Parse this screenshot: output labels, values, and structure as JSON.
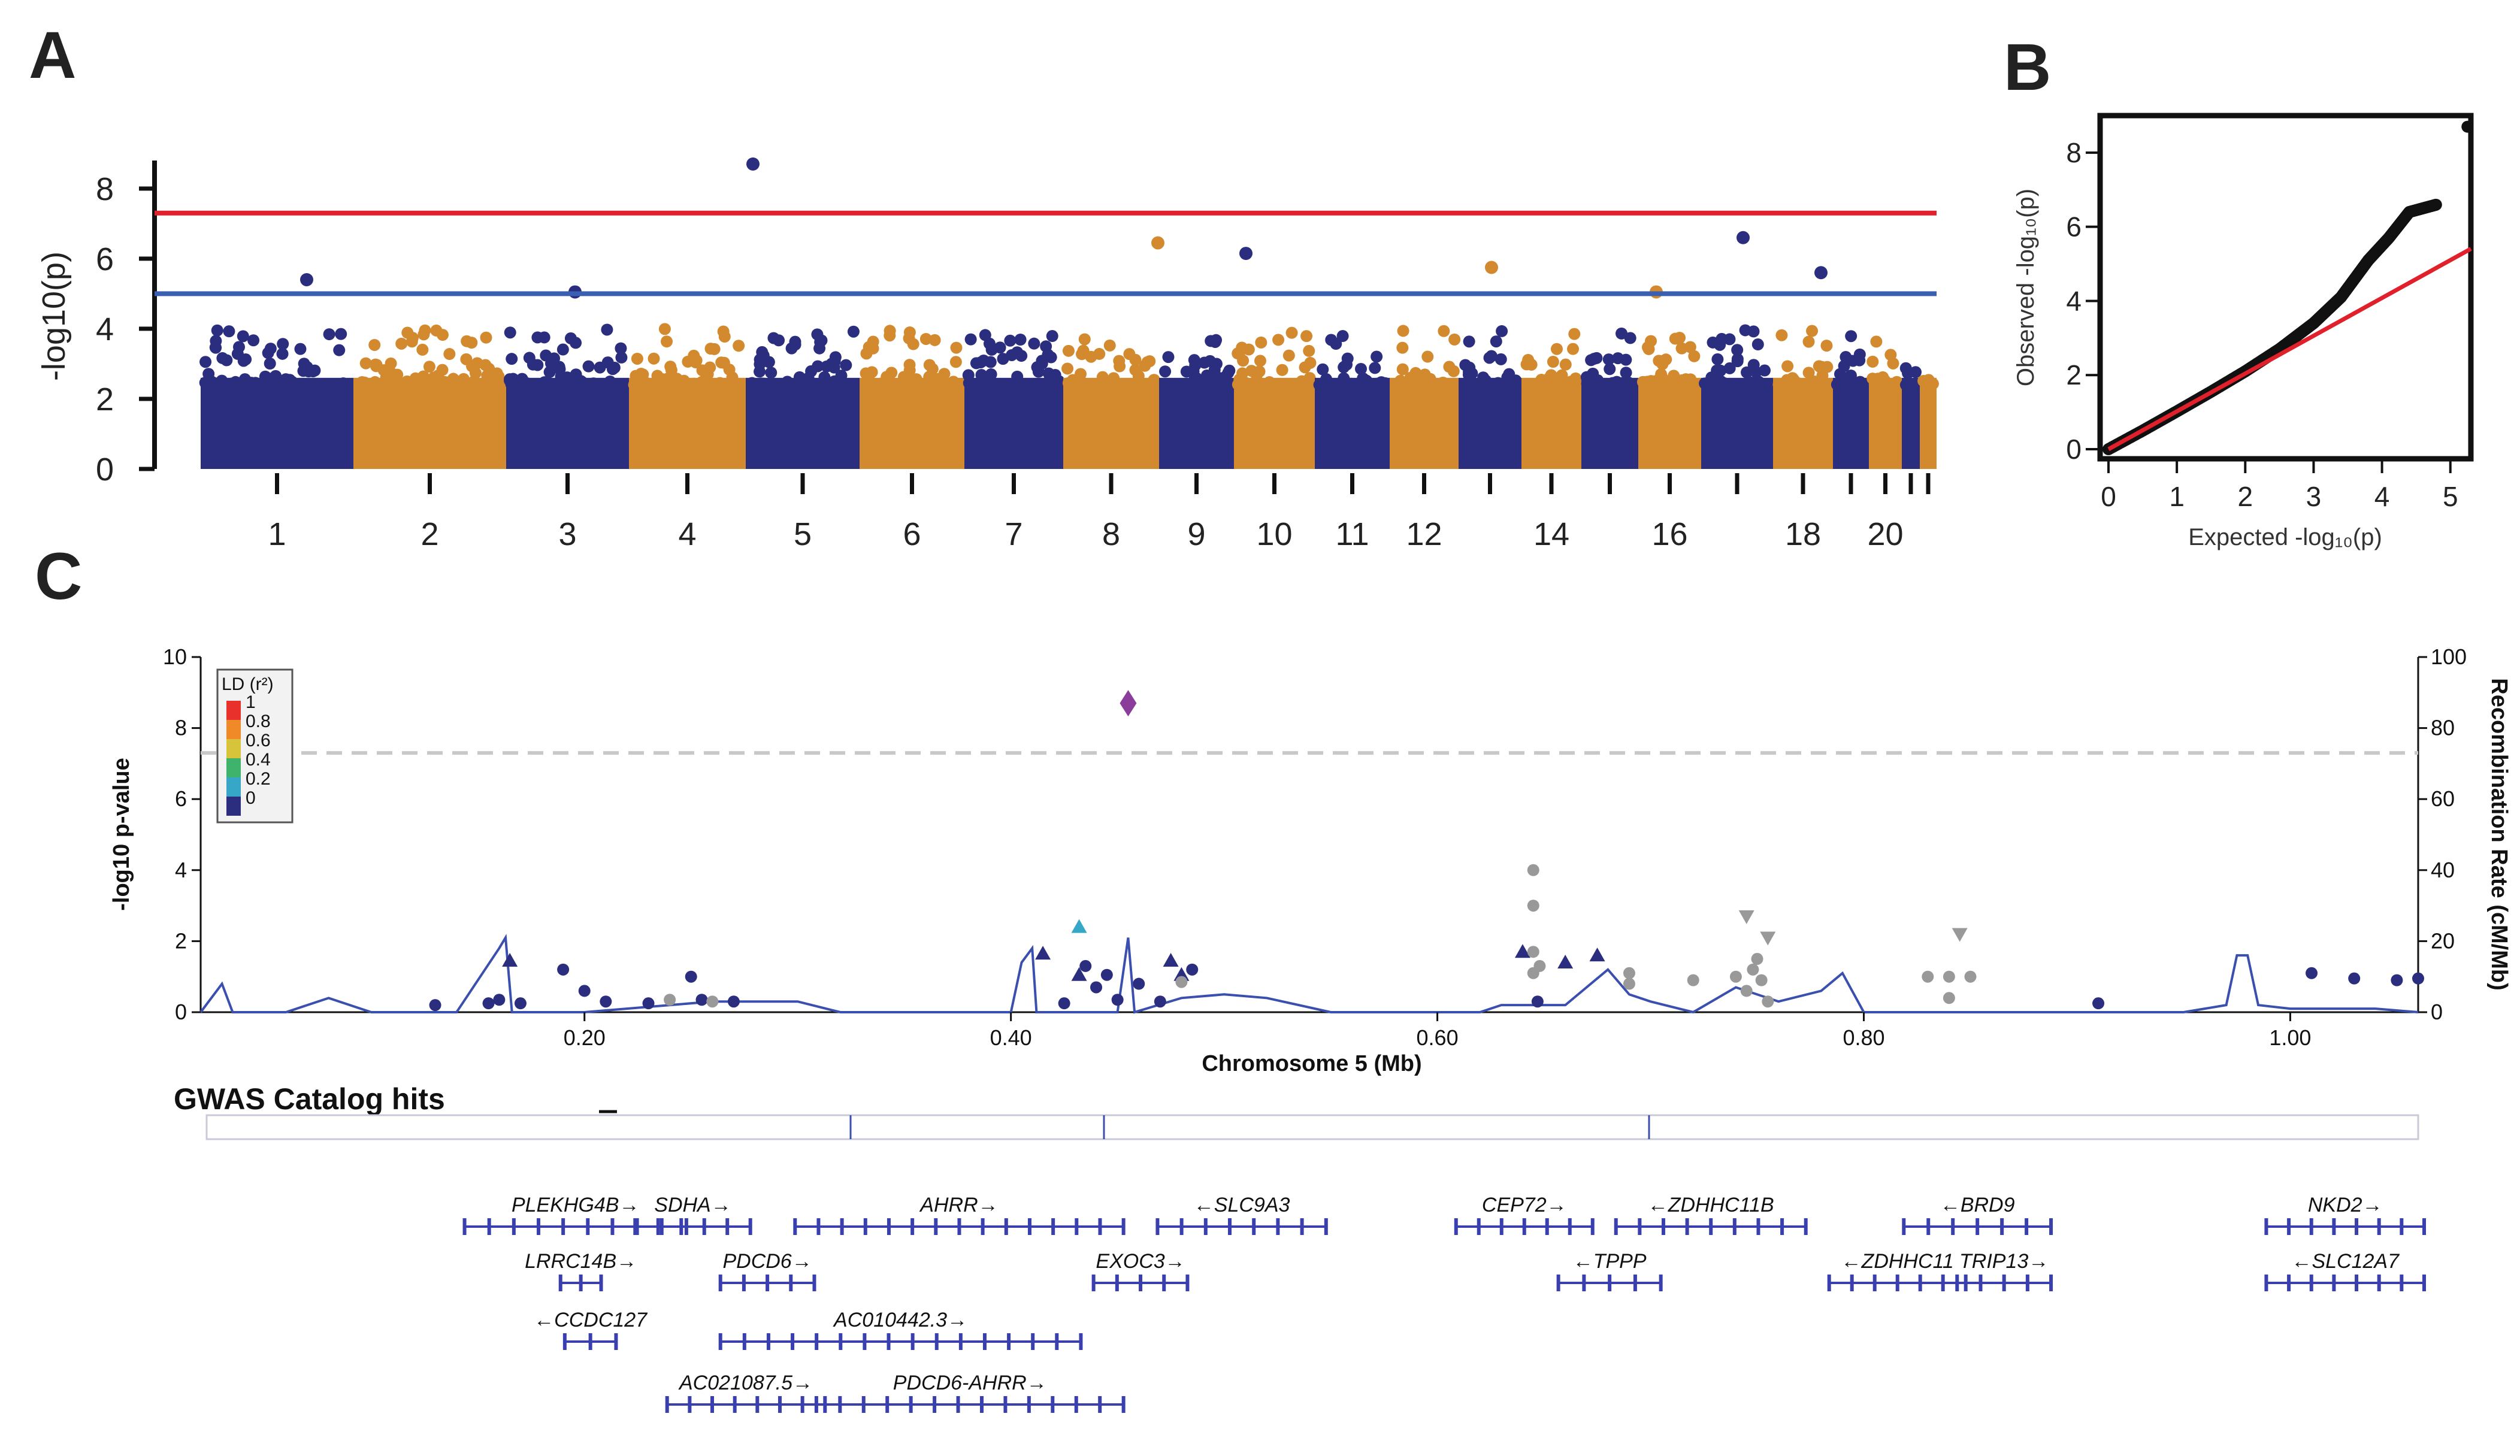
{
  "panel_labels": {
    "a": "A",
    "b": "B",
    "c": "C"
  },
  "colors": {
    "navy": "#2b2e7f",
    "orange": "#d38a2e",
    "red_line": "#e0202b",
    "blue_line": "#3a5fb0",
    "gray": "#999999",
    "purple": "#8b3d9c",
    "cyan": "#36a7c6"
  },
  "chart_data": [
    {
      "type": "scatter",
      "name": "manhattan",
      "ylabel": "-log10(p)",
      "ylim": [
        0,
        8.8
      ],
      "yticks": [
        0,
        2,
        4,
        6,
        8
      ],
      "genome_wide_line": 7.3,
      "suggestive_line": 5.0,
      "chromosome_labels": [
        "1",
        "2",
        "3",
        "4",
        "5",
        "6",
        "7",
        "8",
        "9",
        "10",
        "11",
        "12",
        "14",
        "16",
        "18",
        "20"
      ],
      "top_hits": [
        {
          "chrom": "1",
          "y": 5.4
        },
        {
          "chrom": "3",
          "y": 5.05
        },
        {
          "chrom": "5",
          "y": 8.7
        },
        {
          "chrom": "8",
          "y": 6.45
        },
        {
          "chrom": "9",
          "y": 6.15
        },
        {
          "chrom": "12",
          "y": 5.75
        },
        {
          "chrom": "16",
          "y": 5.05
        },
        {
          "chrom": "17",
          "y": 6.6
        },
        {
          "chrom": "19",
          "y": 5.6
        }
      ]
    },
    {
      "type": "scatter",
      "name": "qq_plot",
      "xlabel": "Expected -log₁₀(p)",
      "ylabel": "Observed -log₁₀(p)",
      "xlim": [
        0,
        5.3
      ],
      "ylim": [
        0,
        9
      ],
      "xticks": [
        0,
        1,
        2,
        3,
        4,
        5
      ],
      "yticks": [
        0,
        2,
        4,
        6,
        8
      ],
      "reference_line": "y = x",
      "observed": [
        [
          0,
          0
        ],
        [
          0.5,
          0.5
        ],
        [
          1,
          1.02
        ],
        [
          1.5,
          1.55
        ],
        [
          2,
          2.1
        ],
        [
          2.5,
          2.7
        ],
        [
          3,
          3.4
        ],
        [
          3.4,
          4.1
        ],
        [
          3.8,
          5.1
        ],
        [
          4.1,
          5.7
        ],
        [
          4.4,
          6.4
        ],
        [
          4.8,
          6.6
        ],
        [
          5.25,
          8.7
        ]
      ]
    },
    {
      "type": "scatter",
      "name": "regional_plot",
      "xlabel": "Chromosome 5 (Mb)",
      "ylabel": "-log10 p-value",
      "y2label": "Recombination Rate (cM/Mb)",
      "xlim": [
        0.02,
        1.06
      ],
      "ylim": [
        0,
        10
      ],
      "y2lim": [
        0,
        100
      ],
      "xticks": [
        "0.20",
        "0.40",
        "0.60",
        "0.80",
        "1.00"
      ],
      "yticks": [
        "0",
        "2",
        "4",
        "6",
        "8",
        "10"
      ],
      "y2ticks": [
        "0",
        "20",
        "40",
        "60",
        "80",
        "100"
      ],
      "threshold": 7.3,
      "lead_snp": {
        "x": 0.455,
        "y": 8.7
      },
      "ld_legend": {
        "title": "LD (r²)",
        "labels": [
          "1",
          "0.8",
          "0.6",
          "0.4",
          "0.2",
          "0"
        ],
        "colors": [
          "#e8312a",
          "#f08a29",
          "#d8c43a",
          "#3fb36b",
          "#36a7c6",
          "#2b2e7f"
        ]
      },
      "gwas_title": "GWAS Catalog hits",
      "points": [
        [
          0.16,
          0.35,
          "n"
        ],
        [
          0.165,
          1.45,
          "t"
        ],
        [
          0.17,
          0.25,
          "n"
        ],
        [
          0.19,
          1.2,
          "n"
        ],
        [
          0.2,
          0.6,
          "n"
        ],
        [
          0.13,
          0.2,
          "n"
        ],
        [
          0.155,
          0.25,
          "n"
        ],
        [
          0.21,
          0.3,
          "n"
        ],
        [
          0.23,
          0.25,
          "n"
        ],
        [
          0.25,
          1.0,
          "n"
        ],
        [
          0.255,
          0.35,
          "n"
        ],
        [
          0.27,
          0.3,
          "n"
        ],
        [
          0.24,
          0.35,
          "g"
        ],
        [
          0.26,
          0.3,
          "g"
        ],
        [
          0.415,
          1.65,
          "t"
        ],
        [
          0.432,
          2.4,
          "c"
        ],
        [
          0.432,
          1.05,
          "t"
        ],
        [
          0.435,
          1.3,
          "n"
        ],
        [
          0.44,
          0.7,
          "n"
        ],
        [
          0.445,
          1.05,
          "n"
        ],
        [
          0.45,
          0.35,
          "n"
        ],
        [
          0.425,
          0.25,
          "n"
        ],
        [
          0.46,
          0.8,
          "n"
        ],
        [
          0.475,
          1.45,
          "t"
        ],
        [
          0.48,
          1.05,
          "t"
        ],
        [
          0.485,
          1.2,
          "n"
        ],
        [
          0.48,
          0.85,
          "g"
        ],
        [
          0.47,
          0.3,
          "n"
        ],
        [
          0.64,
          1.7,
          "t"
        ],
        [
          0.645,
          4.0,
          "g"
        ],
        [
          0.645,
          3.0,
          "g"
        ],
        [
          0.645,
          1.7,
          "g"
        ],
        [
          0.648,
          1.3,
          "g"
        ],
        [
          0.645,
          1.1,
          "g"
        ],
        [
          0.647,
          0.3,
          "n"
        ],
        [
          0.66,
          1.4,
          "t"
        ],
        [
          0.675,
          1.6,
          "t"
        ],
        [
          0.69,
          1.1,
          "g"
        ],
        [
          0.69,
          0.8,
          "g"
        ],
        [
          0.72,
          0.9,
          "g"
        ],
        [
          0.745,
          2.7,
          "v"
        ],
        [
          0.755,
          2.1,
          "v"
        ],
        [
          0.75,
          1.5,
          "g"
        ],
        [
          0.748,
          1.2,
          "g"
        ],
        [
          0.752,
          0.9,
          "g"
        ],
        [
          0.745,
          0.6,
          "g"
        ],
        [
          0.755,
          0.3,
          "g"
        ],
        [
          0.74,
          1.0,
          "g"
        ],
        [
          0.83,
          1.0,
          "g"
        ],
        [
          0.84,
          1.0,
          "g"
        ],
        [
          0.845,
          2.2,
          "v"
        ],
        [
          0.84,
          0.4,
          "g"
        ],
        [
          0.85,
          1.0,
          "g"
        ],
        [
          0.91,
          0.25,
          "n"
        ],
        [
          1.01,
          1.1,
          "n"
        ],
        [
          1.03,
          0.95,
          "n"
        ],
        [
          1.05,
          0.9,
          "n"
        ],
        [
          1.06,
          0.95,
          "n"
        ]
      ],
      "recombination": [
        [
          0.02,
          0
        ],
        [
          0.03,
          8
        ],
        [
          0.035,
          0
        ],
        [
          0.06,
          0
        ],
        [
          0.08,
          4
        ],
        [
          0.1,
          0
        ],
        [
          0.14,
          0
        ],
        [
          0.16,
          18
        ],
        [
          0.163,
          21
        ],
        [
          0.166,
          0
        ],
        [
          0.2,
          0
        ],
        [
          0.26,
          3
        ],
        [
          0.3,
          3
        ],
        [
          0.32,
          0
        ],
        [
          0.4,
          0
        ],
        [
          0.405,
          14
        ],
        [
          0.41,
          18
        ],
        [
          0.412,
          0
        ],
        [
          0.43,
          0
        ],
        [
          0.45,
          0
        ],
        [
          0.455,
          21
        ],
        [
          0.458,
          0
        ],
        [
          0.48,
          4
        ],
        [
          0.5,
          5
        ],
        [
          0.52,
          4
        ],
        [
          0.55,
          0
        ],
        [
          0.6,
          0
        ],
        [
          0.62,
          0
        ],
        [
          0.63,
          2
        ],
        [
          0.66,
          2
        ],
        [
          0.68,
          12
        ],
        [
          0.69,
          5
        ],
        [
          0.7,
          3
        ],
        [
          0.72,
          0
        ],
        [
          0.74,
          7
        ],
        [
          0.76,
          3
        ],
        [
          0.78,
          6
        ],
        [
          0.79,
          11
        ],
        [
          0.8,
          0
        ],
        [
          0.95,
          0
        ],
        [
          0.97,
          2
        ],
        [
          0.975,
          16
        ],
        [
          0.98,
          16
        ],
        [
          0.985,
          2
        ],
        [
          1.0,
          1
        ],
        [
          1.02,
          1
        ],
        [
          1.04,
          1
        ],
        [
          1.06,
          0
        ]
      ],
      "genes": [
        {
          "name": "PLEKHG4B→",
          "start": 0.155,
          "end": 0.245,
          "row": 0
        },
        {
          "name": "SDHA→",
          "start": 0.235,
          "end": 0.275,
          "row": 0
        },
        {
          "name": "AHRR→",
          "start": 0.31,
          "end": 0.45,
          "row": 0
        },
        {
          "name": "←SLC9A3",
          "start": 0.48,
          "end": 0.545,
          "row": 0
        },
        {
          "name": "CEP72→",
          "start": 0.62,
          "end": 0.67,
          "row": 0
        },
        {
          "name": "←ZDHHC11B",
          "start": 0.695,
          "end": 0.77,
          "row": 0
        },
        {
          "name": "←BRD9",
          "start": 0.83,
          "end": 0.885,
          "row": 0
        },
        {
          "name": "NKD2→",
          "start": 1.0,
          "end": 1.06,
          "row": 0
        },
        {
          "name": "LRRC14B→",
          "start": 0.2,
          "end": 0.205,
          "row": 1
        },
        {
          "name": "PDCD6→",
          "start": 0.275,
          "end": 0.305,
          "row": 1
        },
        {
          "name": "EXOC3→",
          "start": 0.45,
          "end": 0.48,
          "row": 1
        },
        {
          "name": "←TPPP",
          "start": 0.668,
          "end": 0.702,
          "row": 1
        },
        {
          "name": "←ZDHHC11",
          "start": 0.795,
          "end": 0.845,
          "row": 1
        },
        {
          "name": "TRIP13→",
          "start": 0.855,
          "end": 0.885,
          "row": 1
        },
        {
          "name": "←SLC12A7",
          "start": 1.0,
          "end": 1.06,
          "row": 1
        },
        {
          "name": "←CCDC127",
          "start": 0.202,
          "end": 0.212,
          "row": 2
        },
        {
          "name": "AC010442.3→",
          "start": 0.275,
          "end": 0.43,
          "row": 2
        },
        {
          "name": "AC021087.5→",
          "start": 0.25,
          "end": 0.31,
          "row": 3
        },
        {
          "name": "PDCD6-AHRR→",
          "start": 0.32,
          "end": 0.45,
          "row": 3
        }
      ]
    }
  ]
}
